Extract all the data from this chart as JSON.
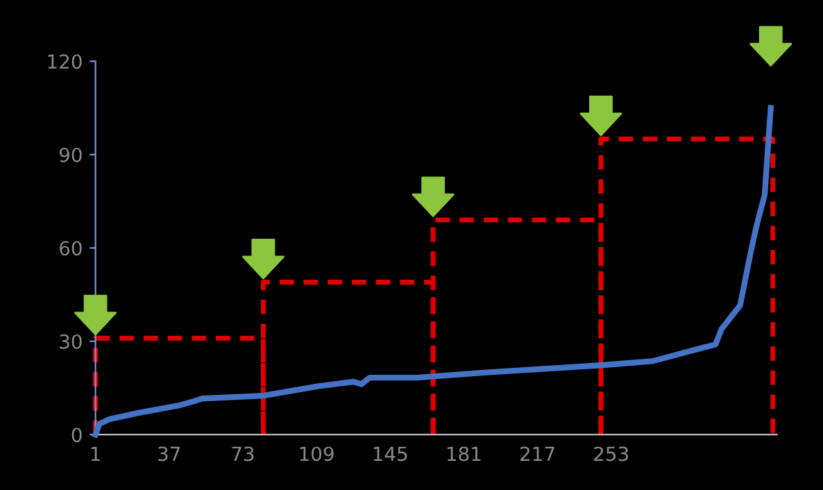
{
  "chart_data": {
    "type": "line",
    "xlim": [
      1,
      334
    ],
    "ylim": [
      0,
      120
    ],
    "xticks": [
      1,
      37,
      73,
      109,
      145,
      181,
      217,
      253
    ],
    "yticks": [
      0,
      30,
      60,
      90,
      120
    ],
    "grid": false,
    "legend": false,
    "series": [
      {
        "color": "#4472c4",
        "line_style": "solid",
        "x": [
          1,
          3,
          8,
          22,
          42,
          49,
          53,
          83,
          110,
          127,
          131,
          135,
          158,
          166,
          192,
          226,
          248,
          273,
          304,
          307,
          316,
          321,
          324,
          328,
          330,
          331
        ],
        "values": [
          0,
          3.5,
          5,
          7,
          9.4,
          10.7,
          11.6,
          12.5,
          15.6,
          17,
          16.2,
          18.3,
          18.3,
          18.7,
          20,
          21.4,
          22.3,
          23.6,
          29,
          34,
          41.5,
          58,
          67,
          77,
          96,
          105
        ]
      },
      {
        "color": "#e00000",
        "line_style": "dashed",
        "x": [
          1,
          1,
          83,
          83
        ],
        "values": [
          0,
          31,
          31,
          0
        ]
      },
      {
        "color": "#e00000",
        "line_style": "dashed",
        "x": [
          83,
          83,
          166,
          166
        ],
        "values": [
          0,
          49,
          49,
          0
        ]
      },
      {
        "color": "#e00000",
        "line_style": "dashed",
        "x": [
          166,
          166,
          248,
          248
        ],
        "values": [
          0,
          69,
          69,
          0
        ]
      },
      {
        "color": "#e00000",
        "line_style": "dashed",
        "x": [
          248,
          248,
          332,
          332
        ],
        "values": [
          0,
          95,
          95,
          0
        ]
      }
    ]
  }
}
